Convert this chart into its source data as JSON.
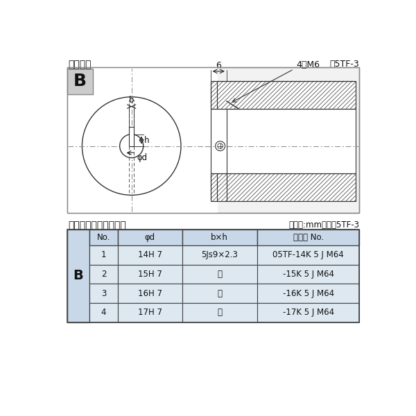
{
  "title_left": "軸穴形状",
  "title_right": "図5TF-3",
  "table_title_left": "軸穴形状コードー覧表",
  "table_title_right": "（単位:mm）　表5TF-3",
  "bg_color": "#ffffff",
  "diagram_bg": "#f2f2f2",
  "table_header_bg": "#c8d8e8",
  "table_row_bg": "#dde8f0",
  "table_border": "#444444",
  "label_b": "B",
  "dim_b": "b",
  "dim_h": "h",
  "dim_phi_d": "φd",
  "dim_6": "6",
  "dim_4m6": "4－M6",
  "table_headers": [
    "No.",
    "φd",
    "b×h",
    "コード No."
  ],
  "table_rows": [
    [
      "1",
      "14H 7",
      "5Js9×2.3",
      "05TF-14K 5 J M64"
    ],
    [
      "2",
      "15H 7",
      "〃",
      "-15K 5 J M64"
    ],
    [
      "3",
      "16H 7",
      "〃",
      "-16K 5 J M64"
    ],
    [
      "4",
      "17H 7",
      "〃",
      "-17K 5 J M64"
    ]
  ],
  "row_label": "B"
}
